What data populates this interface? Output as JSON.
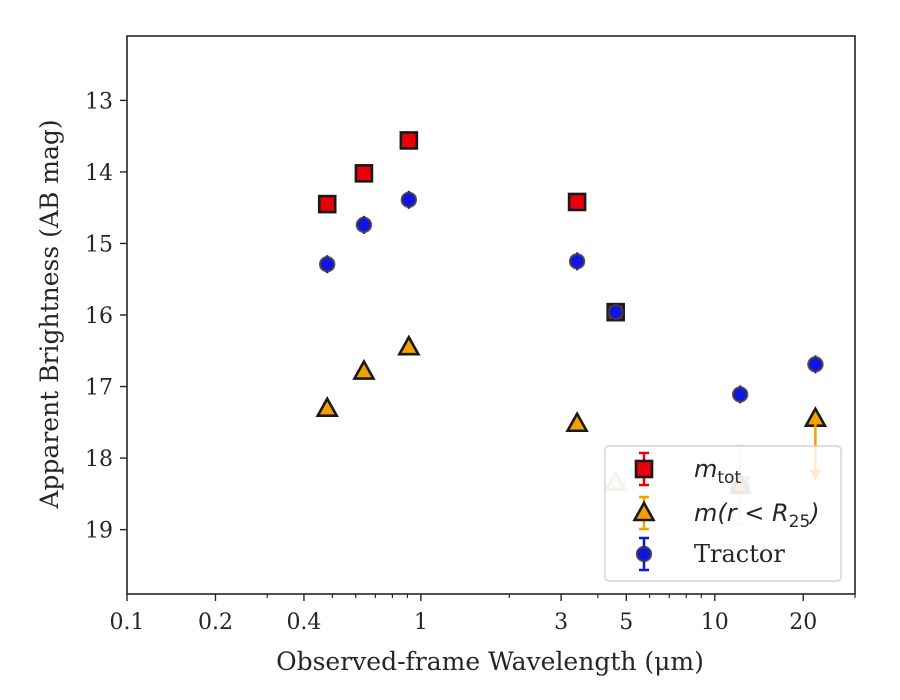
{
  "chart_data": {
    "type": "scatter",
    "xlabel": "Observed-frame Wavelength (μm)",
    "ylabel": "Apparent Brightness (AB mag)",
    "xscale": "log",
    "xlim": [
      0.1,
      30
    ],
    "ylim": [
      19.9,
      12.1
    ],
    "y_inverted": true,
    "grid": false,
    "legend_position": "bottom-right",
    "x_ticks": [
      {
        "value": 0.1,
        "label": "0.1"
      },
      {
        "value": 0.2,
        "label": "0.2"
      },
      {
        "value": 0.4,
        "label": "0.4"
      },
      {
        "value": 1,
        "label": "1"
      },
      {
        "value": 3,
        "label": "3"
      },
      {
        "value": 5,
        "label": "5"
      },
      {
        "value": 10,
        "label": "10"
      },
      {
        "value": 20,
        "label": "20"
      }
    ],
    "y_ticks": [
      {
        "value": 13,
        "label": "13"
      },
      {
        "value": 14,
        "label": "14"
      },
      {
        "value": 15,
        "label": "15"
      },
      {
        "value": 16,
        "label": "16"
      },
      {
        "value": 17,
        "label": "17"
      },
      {
        "value": 18,
        "label": "18"
      },
      {
        "value": 19,
        "label": "19"
      }
    ],
    "series": [
      {
        "name": "m_tot",
        "legend_label": {
          "main": "m",
          "sub": "tot"
        },
        "marker": "square",
        "color": "#e8000b",
        "edge": "#1a1a1a",
        "points": [
          {
            "x": 0.48,
            "y": 14.45
          },
          {
            "x": 0.64,
            "y": 14.02
          },
          {
            "x": 0.91,
            "y": 13.56
          },
          {
            "x": 3.4,
            "y": 14.42
          },
          {
            "x": 4.6,
            "y": 15.96
          },
          {
            "x": 12.2,
            "y": 18.38,
            "faded": true
          }
        ]
      },
      {
        "name": "m(r < R25)",
        "legend_label": {
          "main": "m(r < R",
          "sub": "25",
          "tail": ")"
        },
        "marker": "triangle",
        "color": "#f5a000",
        "edge": "#1a1a1a",
        "points": [
          {
            "x": 0.48,
            "y": 17.31
          },
          {
            "x": 0.64,
            "y": 16.79
          },
          {
            "x": 0.91,
            "y": 16.45
          },
          {
            "x": 3.4,
            "y": 17.52
          },
          {
            "x": 4.6,
            "y": 18.34,
            "faded": true
          },
          {
            "x": 12.2,
            "y": 18.38,
            "faded": true,
            "yerr": 0.55
          },
          {
            "x": 22.0,
            "y": 17.45,
            "upper_limit": true
          }
        ]
      },
      {
        "name": "Tractor",
        "legend_label": {
          "main": "Tractor"
        },
        "marker": "circle",
        "color": "#0d14e6",
        "edge": "#3a3a4a",
        "points": [
          {
            "x": 0.48,
            "y": 15.29
          },
          {
            "x": 0.64,
            "y": 14.74
          },
          {
            "x": 0.91,
            "y": 14.39
          },
          {
            "x": 3.4,
            "y": 15.25
          },
          {
            "x": 4.6,
            "y": 15.96
          },
          {
            "x": 12.2,
            "y": 17.11
          },
          {
            "x": 22.0,
            "y": 16.69
          }
        ]
      }
    ]
  }
}
